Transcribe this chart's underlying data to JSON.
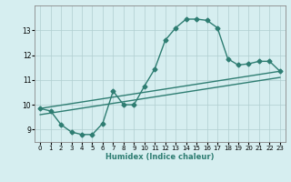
{
  "xlabel": "Humidex (Indice chaleur)",
  "ylabel": "",
  "background_color": "#d6eef0",
  "line_color": "#2e7d72",
  "grid_color": "#b0cdd0",
  "xlim": [
    -0.5,
    23.5
  ],
  "ylim": [
    8.5,
    14.0
  ],
  "xticks": [
    0,
    1,
    2,
    3,
    4,
    5,
    6,
    7,
    8,
    9,
    10,
    11,
    12,
    13,
    14,
    15,
    16,
    17,
    18,
    19,
    20,
    21,
    22,
    23
  ],
  "yticks": [
    9,
    10,
    11,
    12,
    13
  ],
  "curve1_x": [
    0,
    1,
    2,
    3,
    4,
    5,
    6,
    7,
    8,
    9,
    10,
    11,
    12,
    13,
    14,
    15,
    16,
    17,
    18,
    19,
    20,
    21,
    22,
    23
  ],
  "curve1_y": [
    9.85,
    9.75,
    9.2,
    8.9,
    8.8,
    8.8,
    9.25,
    10.55,
    10.0,
    10.0,
    10.75,
    11.45,
    12.6,
    13.1,
    13.45,
    13.45,
    13.4,
    13.1,
    11.85,
    11.6,
    11.65,
    11.75,
    11.75,
    11.35
  ],
  "curve2_x": [
    0,
    23
  ],
  "curve2_y": [
    9.85,
    11.35
  ],
  "curve3_x": [
    0,
    23
  ],
  "curve3_y": [
    9.6,
    11.1
  ],
  "marker_size": 2.5,
  "line_width": 1.0
}
